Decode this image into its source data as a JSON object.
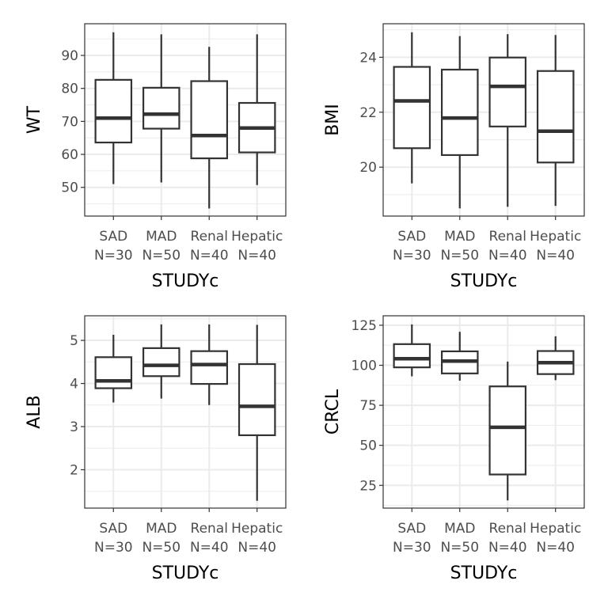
{
  "chart_data": [
    {
      "type": "box",
      "ylabel": "WT",
      "xlabel": "STUDYc",
      "categories": [
        "SAD\nN=30",
        "MAD\nN=50",
        "Renal\nN=40",
        "Hepatic\nN=40"
      ],
      "yticks": [
        50,
        60,
        70,
        80,
        90
      ],
      "ylim": [
        41.3,
        99.6
      ],
      "boxes": [
        {
          "min": 51.0,
          "q1": 63.6,
          "median": 71.0,
          "q3": 82.6,
          "max": 97.0
        },
        {
          "min": 51.5,
          "q1": 67.8,
          "median": 72.2,
          "q3": 80.2,
          "max": 96.4
        },
        {
          "min": 43.6,
          "q1": 58.8,
          "median": 65.7,
          "q3": 82.2,
          "max": 92.6
        },
        {
          "min": 50.7,
          "q1": 60.6,
          "median": 68.0,
          "q3": 75.6,
          "max": 96.4
        }
      ]
    },
    {
      "type": "box",
      "ylabel": "BMI",
      "xlabel": "STUDYc",
      "categories": [
        "SAD\nN=30",
        "MAD\nN=50",
        "Renal\nN=40",
        "Hepatic\nN=40"
      ],
      "yticks": [
        20,
        22,
        24
      ],
      "ylim": [
        18.22,
        25.22
      ],
      "boxes": [
        {
          "min": 19.41,
          "q1": 20.69,
          "median": 22.41,
          "q3": 23.65,
          "max": 24.91
        },
        {
          "min": 18.5,
          "q1": 20.44,
          "median": 21.79,
          "q3": 23.55,
          "max": 24.77
        },
        {
          "min": 18.56,
          "q1": 21.48,
          "median": 22.94,
          "q3": 23.99,
          "max": 24.84
        },
        {
          "min": 18.59,
          "q1": 20.17,
          "median": 21.31,
          "q3": 23.5,
          "max": 24.81
        }
      ]
    },
    {
      "type": "box",
      "ylabel": "ALB",
      "xlabel": "STUDYc",
      "categories": [
        "SAD\nN=30",
        "MAD\nN=50",
        "Renal\nN=40",
        "Hepatic\nN=40"
      ],
      "yticks": [
        2,
        3,
        4,
        5
      ],
      "ylim": [
        1.11,
        5.57
      ],
      "boxes": [
        {
          "min": 3.56,
          "q1": 3.89,
          "median": 4.06,
          "q3": 4.61,
          "max": 5.13
        },
        {
          "min": 3.65,
          "q1": 4.17,
          "median": 4.42,
          "q3": 4.82,
          "max": 5.37
        },
        {
          "min": 3.5,
          "q1": 3.99,
          "median": 4.44,
          "q3": 4.75,
          "max": 5.37
        },
        {
          "min": 1.28,
          "q1": 2.8,
          "median": 3.47,
          "q3": 4.45,
          "max": 5.36
        }
      ]
    },
    {
      "type": "box",
      "ylabel": "CRCL",
      "xlabel": "STUDYc",
      "categories": [
        "SAD\nN=30",
        "MAD\nN=50",
        "Renal\nN=40",
        "Hepatic\nN=40"
      ],
      "yticks": [
        25,
        50,
        75,
        100,
        125
      ],
      "ylim": [
        10.8,
        130.9
      ],
      "boxes": [
        {
          "min": 93.1,
          "q1": 98.7,
          "median": 104.1,
          "q3": 113.2,
          "max": 125.5
        },
        {
          "min": 90.4,
          "q1": 94.9,
          "median": 102.6,
          "q3": 108.7,
          "max": 120.9
        },
        {
          "min": 15.6,
          "q1": 31.8,
          "median": 61.3,
          "q3": 86.8,
          "max": 102.3
        },
        {
          "min": 90.7,
          "q1": 94.5,
          "median": 101.6,
          "q3": 108.9,
          "max": 118.1
        }
      ]
    }
  ],
  "colors": {
    "box": "#333333",
    "grid": "#ebebeb",
    "panel_border": "#333333",
    "tick_text": "#4d4d4d",
    "axis_title": "#000000"
  }
}
